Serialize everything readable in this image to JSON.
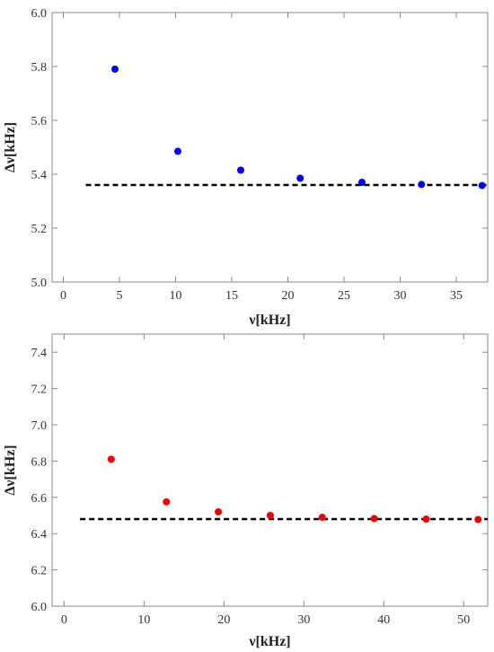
{
  "chart_data": [
    {
      "type": "scatter",
      "xlabel": "ν[kHz]",
      "ylabel": "Δν[kHz]",
      "xlim": [
        -1,
        37.8
      ],
      "ylim": [
        5.0,
        6.0
      ],
      "xticks": [
        0,
        5,
        10,
        15,
        20,
        25,
        30,
        35
      ],
      "yticks": [
        5.0,
        5.2,
        5.4,
        5.6,
        5.8,
        6.0
      ],
      "ytick_labels": [
        "5.0",
        "5.2",
        "5.4",
        "5.6",
        "5.8",
        "6.0"
      ],
      "grid": false,
      "series": [
        {
          "color": "#0000ee",
          "points": [
            {
              "x": 4.6,
              "y": 5.79
            },
            {
              "x": 10.2,
              "y": 5.485
            },
            {
              "x": 15.8,
              "y": 5.415
            },
            {
              "x": 21.1,
              "y": 5.385
            },
            {
              "x": 26.6,
              "y": 5.37
            },
            {
              "x": 31.9,
              "y": 5.362
            },
            {
              "x": 37.3,
              "y": 5.358
            }
          ]
        }
      ],
      "reference_line": {
        "y": 5.36,
        "x_start": 2,
        "x_end": 37.8,
        "style": "dashed",
        "color": "#000000"
      }
    },
    {
      "type": "scatter",
      "xlabel": "ν[kHz]",
      "ylabel": "Δν[kHz]",
      "xlim": [
        -1.5,
        53
      ],
      "ylim": [
        6.0,
        7.5
      ],
      "xticks": [
        0,
        10,
        20,
        30,
        40,
        50
      ],
      "yticks": [
        6.0,
        6.2,
        6.4,
        6.6,
        6.8,
        7.0,
        7.2,
        7.4
      ],
      "ytick_labels": [
        "6.0",
        "6.2",
        "6.4",
        "6.6",
        "6.8",
        "7.0",
        "7.2",
        "7.4"
      ],
      "grid": false,
      "series": [
        {
          "color": "#ee0000",
          "points": [
            {
              "x": 5.9,
              "y": 6.81
            },
            {
              "x": 12.8,
              "y": 6.575
            },
            {
              "x": 19.3,
              "y": 6.52
            },
            {
              "x": 25.8,
              "y": 6.5
            },
            {
              "x": 32.3,
              "y": 6.49
            },
            {
              "x": 38.8,
              "y": 6.483
            },
            {
              "x": 45.3,
              "y": 6.48
            },
            {
              "x": 51.8,
              "y": 6.478
            }
          ]
        }
      ],
      "reference_line": {
        "y": 6.48,
        "x_start": 2,
        "x_end": 53,
        "style": "dashed",
        "color": "#000000"
      }
    }
  ]
}
